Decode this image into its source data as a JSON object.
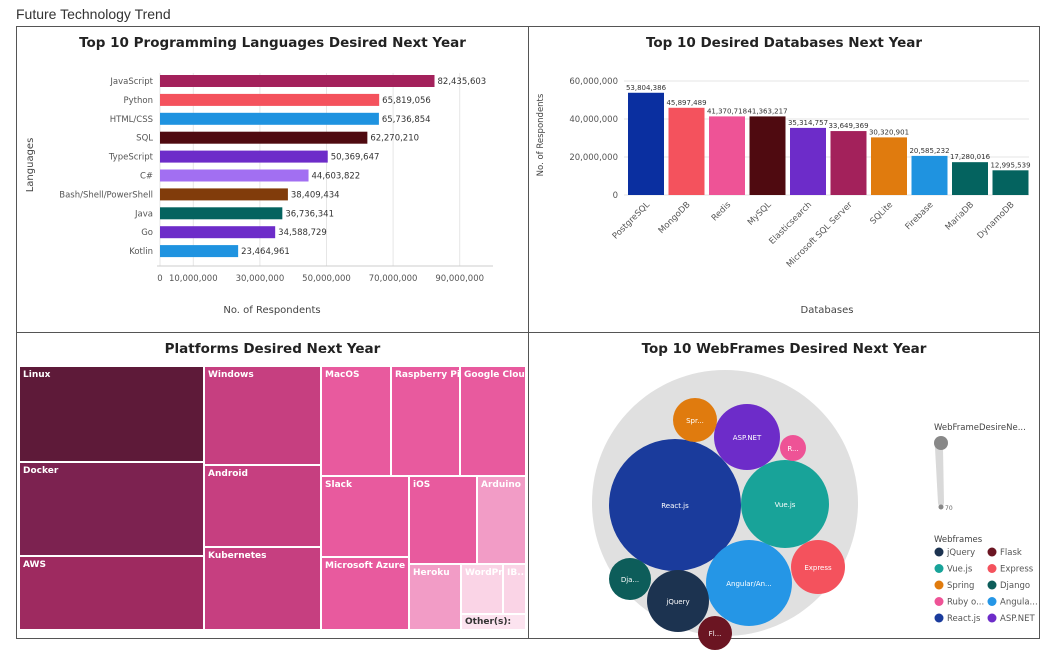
{
  "page": {
    "title": "Future Technology Trend"
  },
  "chart_data": [
    {
      "id": "languages",
      "type": "bar",
      "orientation": "horizontal",
      "title": "Top 10 Programming Languages Desired Next Year",
      "xlabel": "No. of Respondents",
      "ylabel": "Languages",
      "categories": [
        "JavaScript",
        "Python",
        "HTML/CSS",
        "SQL",
        "TypeScript",
        "C#",
        "Bash/Shell/PowerShell",
        "Java",
        "Go",
        "Kotlin"
      ],
      "values": [
        82435603,
        65819056,
        65736854,
        62270210,
        50369647,
        44603822,
        38409434,
        36736341,
        34588729,
        23464961
      ],
      "value_labels": [
        "82,435,603",
        "65,819,056",
        "65,736,854",
        "62,270,210",
        "50,369,647",
        "44,603,822",
        "38,409,434",
        "36,736,341",
        "34,588,729",
        "23,464,961"
      ],
      "colors": [
        "#a3215b",
        "#f4525d",
        "#1f93e0",
        "#4f0a10",
        "#6d2cc9",
        "#a26ff2",
        "#813c0b",
        "#04635f",
        "#6d2cc9",
        "#1f93e0"
      ],
      "xticks": [
        0,
        10000000,
        30000000,
        50000000,
        70000000,
        90000000
      ],
      "xtick_labels": [
        "0",
        "10,000,000",
        "30,000,000",
        "50,000,000",
        "70,000,000",
        "90,000,000"
      ],
      "xlim": [
        0,
        100000000
      ],
      "grid": true
    },
    {
      "id": "databases",
      "type": "bar",
      "orientation": "vertical",
      "title": "Top 10 Desired Databases Next Year",
      "xlabel": "Databases",
      "ylabel": "No. of Respondents",
      "categories": [
        "PostgreSQL",
        "MongoDB",
        "Redis",
        "MySQL",
        "Elasticsearch",
        "Microsoft SQL Server",
        "SQLite",
        "Firebase",
        "MariaDB",
        "DynamoDB"
      ],
      "values": [
        53804386,
        45897489,
        41370718,
        41363217,
        35314757,
        33649369,
        30320901,
        20585232,
        17280016,
        12995539
      ],
      "value_labels": [
        "53,804,386",
        "45,897,489",
        "41,370,718",
        "41,363,217",
        "35,314,757",
        "33,649,369",
        "30,320,901",
        "20,585,232",
        "17,280,016",
        "12,995,539"
      ],
      "colors": [
        "#0a2fa0",
        "#f4525d",
        "#ee5396",
        "#4f0a10",
        "#6d2cc9",
        "#a3215b",
        "#e07b0e",
        "#1f93e0",
        "#04635f",
        "#04635f"
      ],
      "yticks": [
        0,
        20000000,
        40000000,
        60000000
      ],
      "ytick_labels": [
        "0",
        "20,000,000",
        "40,000,000",
        "60,000,000"
      ],
      "ylim": [
        0,
        60000000
      ],
      "grid": true
    },
    {
      "id": "platforms",
      "type": "treemap",
      "title": "Platforms Desired Next Year",
      "labels": [
        "Linux",
        "Docker",
        "AWS",
        "Windows",
        "Android",
        "Kubernetes",
        "MacOS",
        "Raspberry Pi",
        "Google Cloud ...",
        "Slack",
        "Microsoft Azure",
        "iOS",
        "Arduino",
        "Heroku",
        "WordPr...",
        "IB...",
        "Other(s):"
      ]
    },
    {
      "id": "webframes",
      "type": "bubble",
      "title": "Top 10 WebFrames Desired Next Year",
      "bubble_labels": [
        "React.js",
        "Angular/An...",
        "Vue.js",
        "ASP.NET",
        "jQuery",
        "Express",
        "Dja...",
        "Spr...",
        "Fl...",
        "R..."
      ],
      "size_legend_title": "WebFrameDesireNe...",
      "size_legend_min_label": "70",
      "legend_title": "Webframes",
      "legend_items": [
        {
          "label": "jQuery",
          "color": "#1c3350"
        },
        {
          "label": "Flask",
          "color": "#6b1522"
        },
        {
          "label": "Vue.js",
          "color": "#18a399"
        },
        {
          "label": "Express",
          "color": "#f4525d"
        },
        {
          "label": "Spring",
          "color": "#e07b0e"
        },
        {
          "label": "Django",
          "color": "#0d5d5a"
        },
        {
          "label": "Ruby o...",
          "color": "#ee5396"
        },
        {
          "label": "Angula...",
          "color": "#2596e6"
        },
        {
          "label": "React.js",
          "color": "#1a3b9c"
        },
        {
          "label": "ASP.NET",
          "color": "#6d2cc9"
        }
      ]
    }
  ]
}
